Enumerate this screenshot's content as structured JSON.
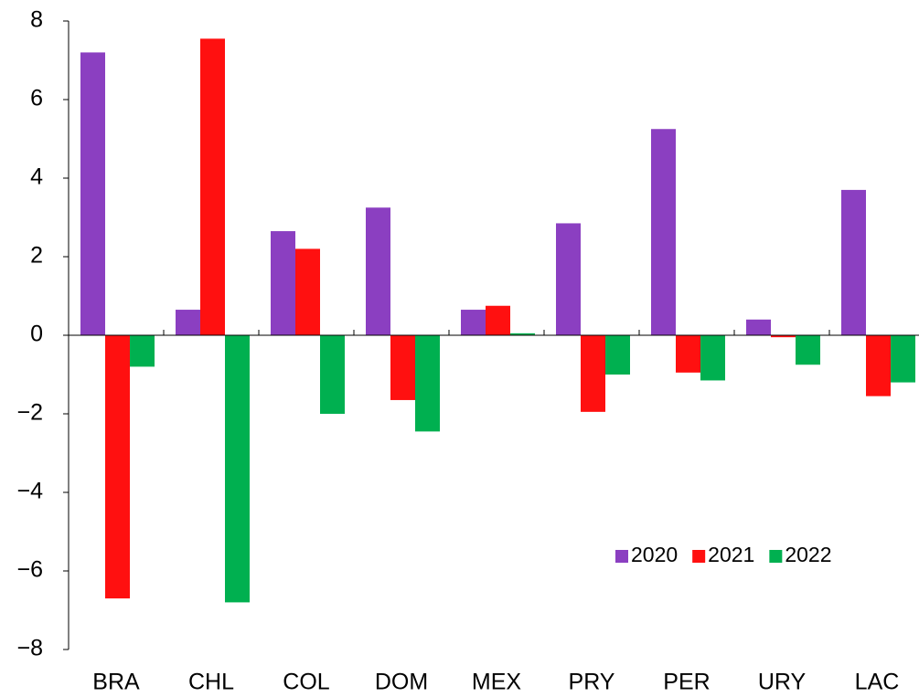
{
  "chart_data": {
    "type": "bar",
    "categories": [
      "BRA",
      "CHL",
      "COL",
      "DOM",
      "MEX",
      "PRY",
      "PER",
      "URY",
      "LAC"
    ],
    "series": [
      {
        "name": "2020",
        "color": "#8b3fc1",
        "values": [
          7.2,
          0.65,
          2.65,
          3.25,
          0.65,
          2.85,
          5.25,
          0.4,
          3.7
        ]
      },
      {
        "name": "2021",
        "color": "#ff1010",
        "values": [
          -6.7,
          7.55,
          2.2,
          -1.65,
          0.75,
          -1.95,
          -0.95,
          -0.05,
          -1.55
        ]
      },
      {
        "name": "2022",
        "color": "#00b050",
        "values": [
          -0.8,
          -6.8,
          -2.0,
          -2.45,
          0.05,
          -1.0,
          -1.15,
          -0.75,
          -1.2
        ]
      }
    ],
    "ylim": [
      -8,
      8
    ],
    "yticks": [
      {
        "value": -8,
        "label": "−8"
      },
      {
        "value": -6,
        "label": "−6"
      },
      {
        "value": -4,
        "label": "−4"
      },
      {
        "value": -2,
        "label": "−2"
      },
      0,
      2,
      4,
      6,
      8
    ],
    "legend": "lower right"
  }
}
